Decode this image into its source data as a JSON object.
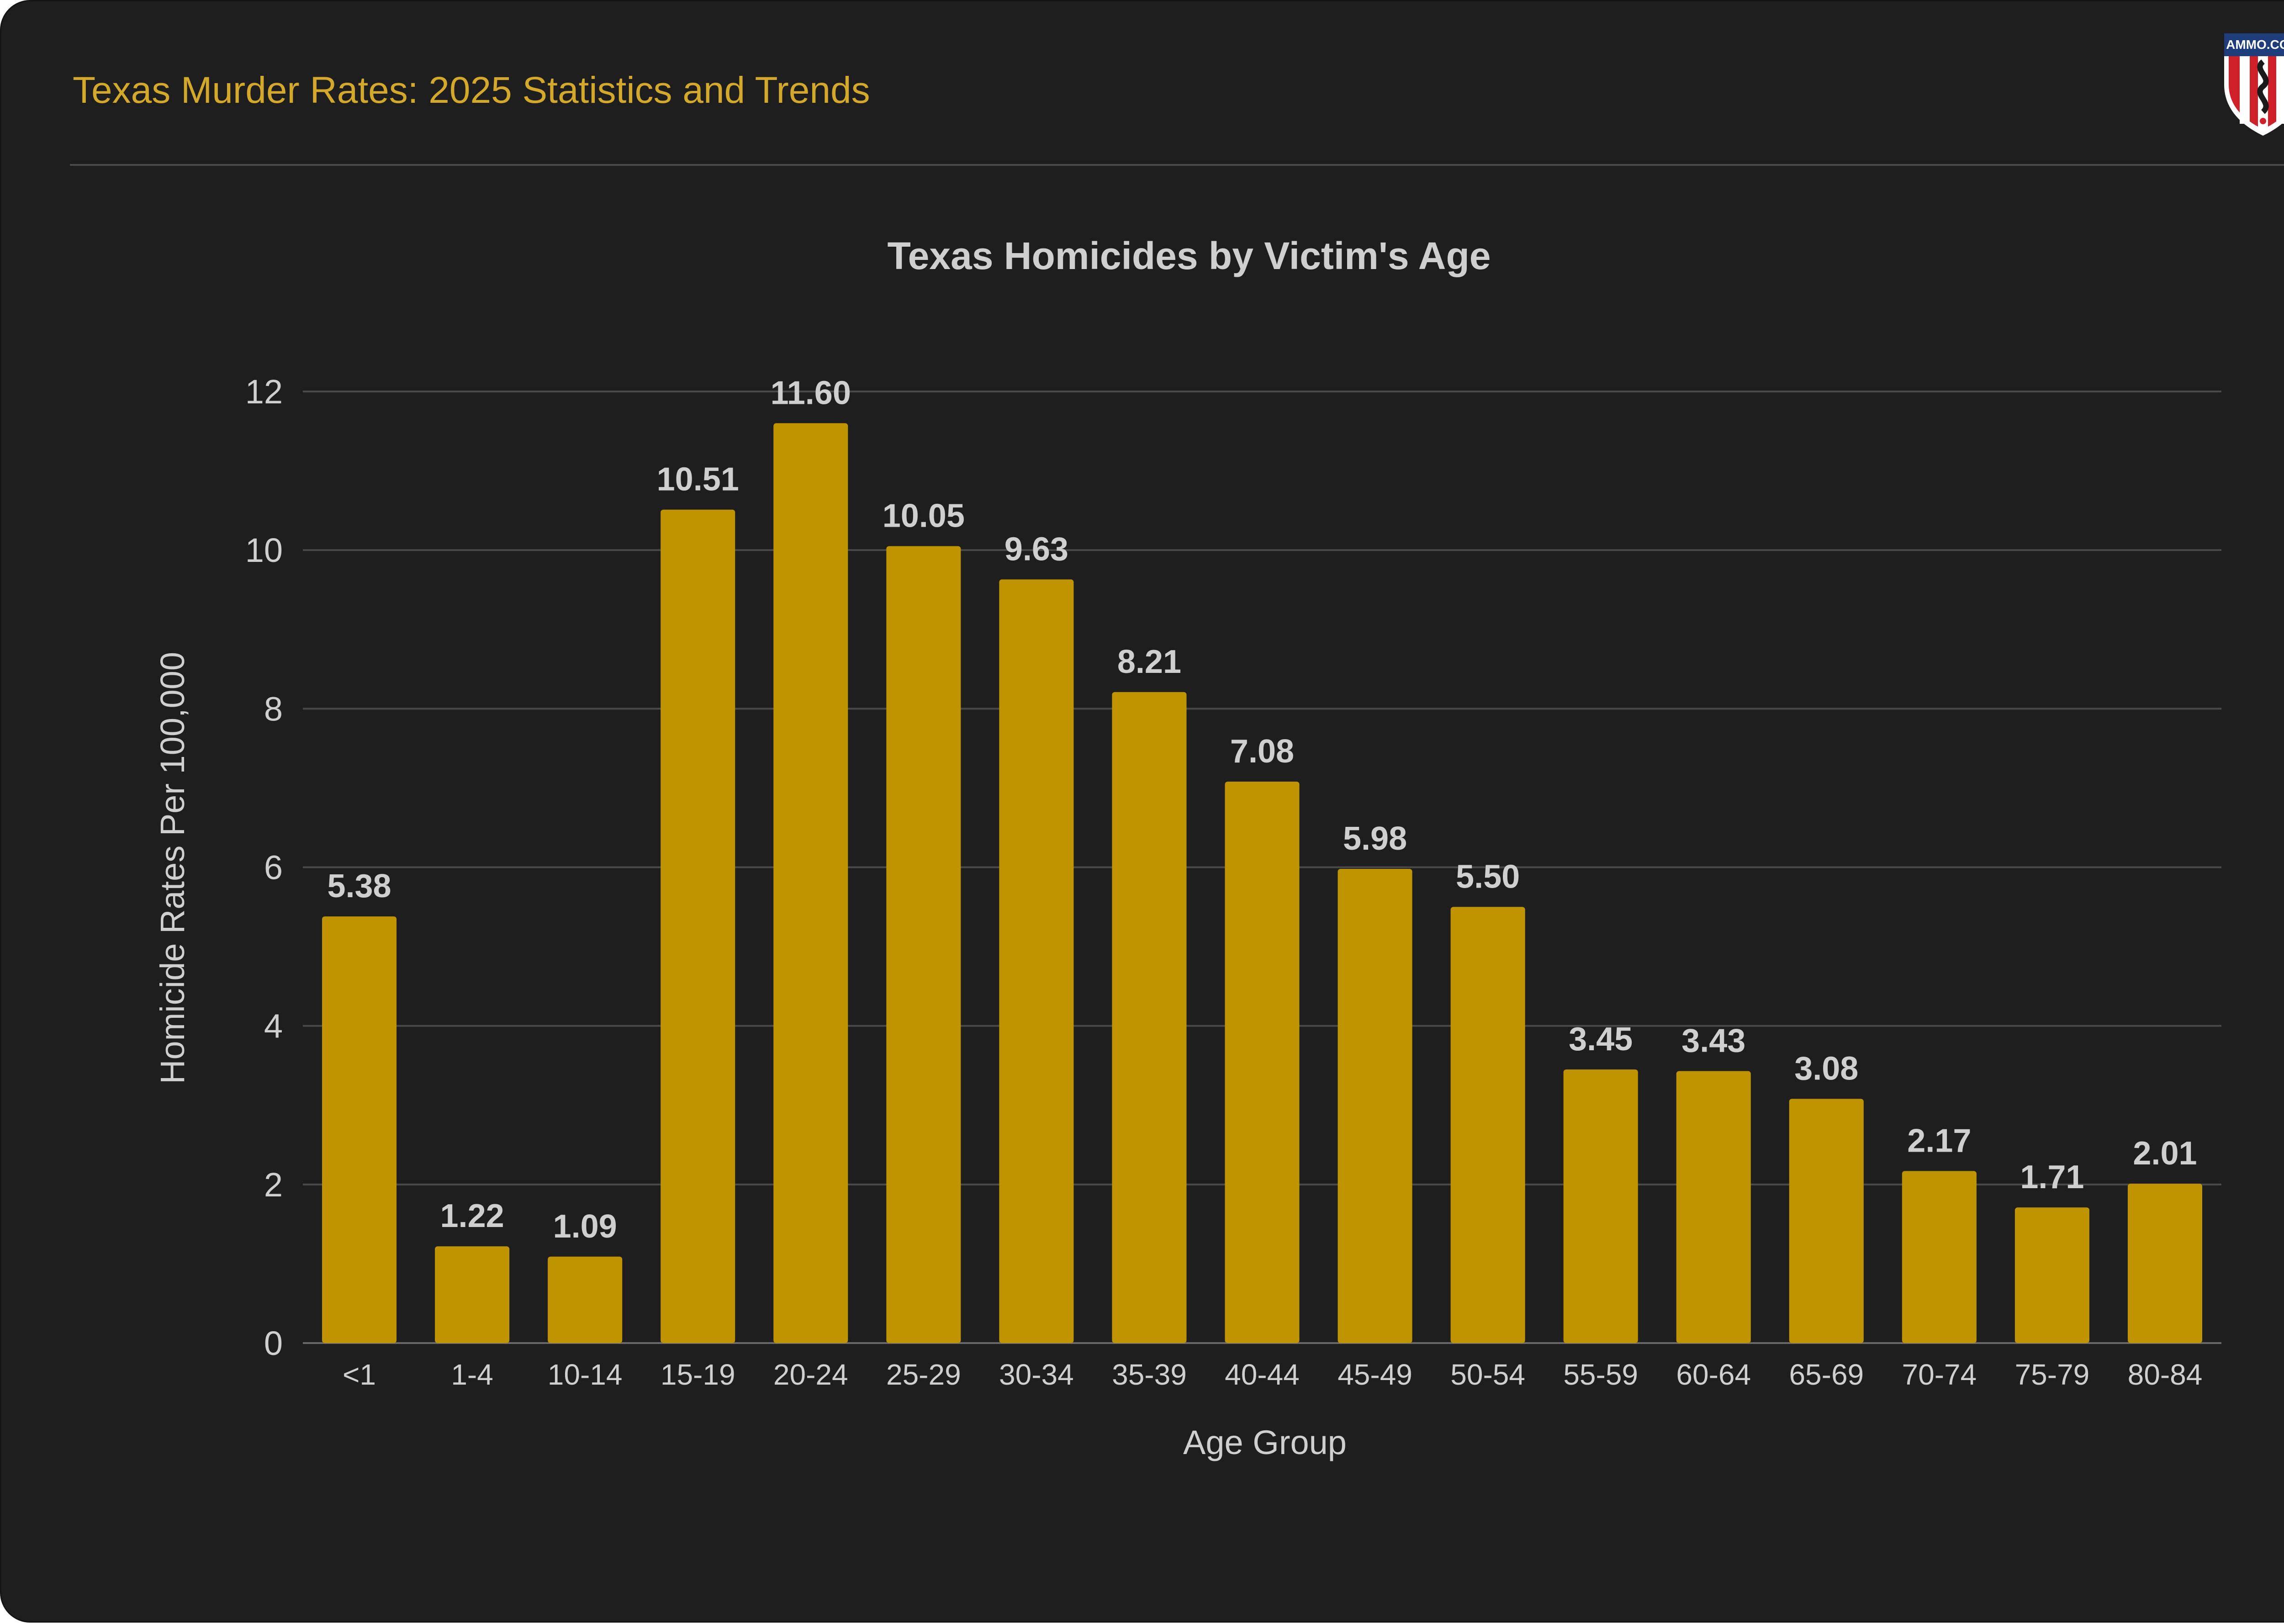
{
  "header": {
    "title": "Texas Murder Rates: 2025 Statistics and Trends",
    "logo_text": "AMMO.COM"
  },
  "colors": {
    "background": "#1e1e1e",
    "accent": "#d4a82a",
    "bar": "#bf9400",
    "grid": "#4a4a4a",
    "text": "#cfcfcf"
  },
  "chart_data": {
    "type": "bar",
    "title": "Texas Homicides by Victim's Age",
    "xlabel": "Age Group",
    "ylabel": "Homicide Rates Per 100,000",
    "ylim": [
      0,
      12
    ],
    "yticks": [
      0,
      2,
      4,
      6,
      8,
      10,
      12
    ],
    "grid": true,
    "legend": "none",
    "categories": [
      "<1",
      "1-4",
      "10-14",
      "15-19",
      "20-24",
      "25-29",
      "30-34",
      "35-39",
      "40-44",
      "45-49",
      "50-54",
      "55-59",
      "60-64",
      "65-69",
      "70-74",
      "75-79",
      "80-84"
    ],
    "values": [
      5.38,
      1.22,
      1.09,
      10.51,
      11.6,
      10.05,
      9.63,
      8.21,
      7.08,
      5.98,
      5.5,
      3.45,
      3.43,
      3.08,
      2.17,
      1.71,
      2.01
    ],
    "data_labels": [
      "5.38",
      "1.22",
      "1.09",
      "10.51",
      "11.60",
      "10.05",
      "9.63",
      "8.21",
      "7.08",
      "5.98",
      "5.50",
      "3.45",
      "3.43",
      "3.08",
      "2.17",
      "1.71",
      "2.01"
    ]
  }
}
